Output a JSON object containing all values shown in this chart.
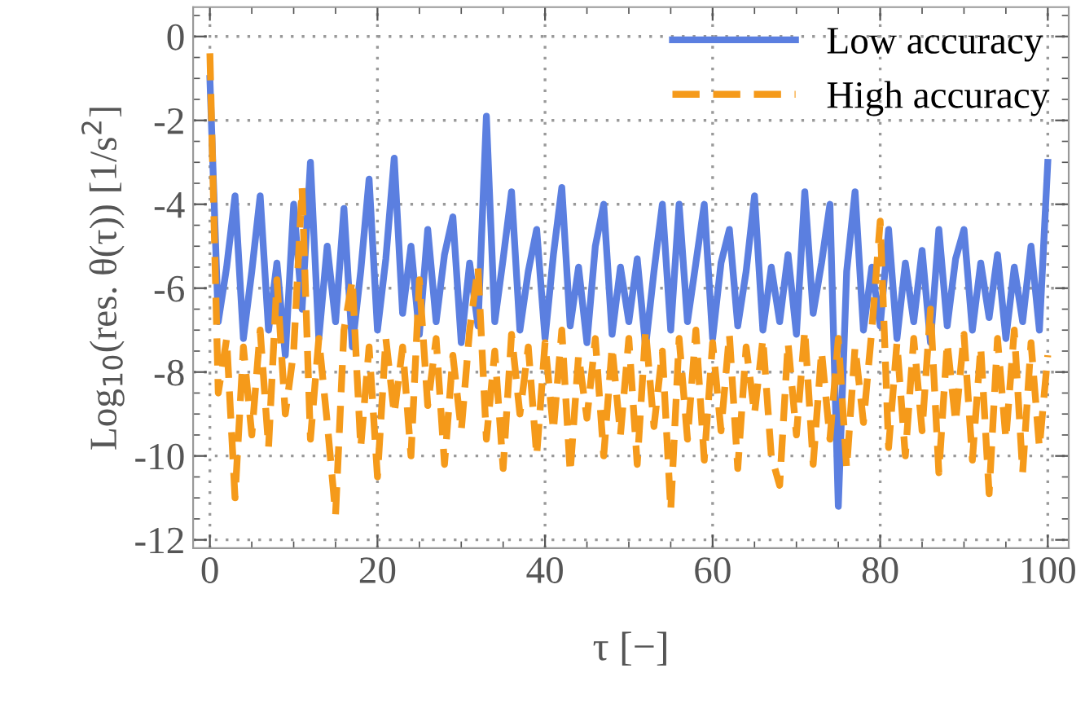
{
  "chart_data": {
    "type": "line",
    "xlabel": "τ [−]",
    "ylabel": "Log$_{10}$(res. θ(τ)) [1/s$^{2}$]",
    "x": [
      0,
      1,
      2,
      3,
      4,
      5,
      6,
      7,
      8,
      9,
      10,
      11,
      12,
      13,
      14,
      15,
      16,
      17,
      18,
      19,
      20,
      21,
      22,
      23,
      24,
      25,
      26,
      27,
      28,
      29,
      30,
      31,
      32,
      33,
      34,
      35,
      36,
      37,
      38,
      39,
      40,
      41,
      42,
      43,
      44,
      45,
      46,
      47,
      48,
      49,
      50,
      51,
      52,
      53,
      54,
      55,
      56,
      57,
      58,
      59,
      60,
      61,
      62,
      63,
      64,
      65,
      66,
      67,
      68,
      69,
      70,
      71,
      72,
      73,
      74,
      75,
      76,
      77,
      78,
      79,
      80,
      81,
      82,
      83,
      84,
      85,
      86,
      87,
      88,
      89,
      90,
      91,
      92,
      93,
      94,
      95,
      96,
      97,
      98,
      99,
      100
    ],
    "series": [
      {
        "name": "Low accuracy",
        "color": "#5b7fe0",
        "line_style": "solid",
        "values": [
          -1.0,
          -6.8,
          -5.5,
          -3.8,
          -7.2,
          -5.6,
          -3.8,
          -7.0,
          -5.4,
          -7.6,
          -4.0,
          -6.5,
          -3.0,
          -7.2,
          -5.0,
          -6.8,
          -4.1,
          -7.4,
          -5.6,
          -3.4,
          -7.0,
          -5.3,
          -2.9,
          -6.6,
          -5.0,
          -7.1,
          -4.6,
          -6.8,
          -5.2,
          -4.3,
          -7.3,
          -5.4,
          -6.9,
          -1.9,
          -6.8,
          -5.3,
          -3.7,
          -7.0,
          -5.6,
          -4.6,
          -7.2,
          -5.2,
          -3.6,
          -6.9,
          -5.5,
          -7.3,
          -5.0,
          -4.0,
          -7.1,
          -5.5,
          -6.8,
          -5.3,
          -7.4,
          -5.6,
          -4.0,
          -7.0,
          -4.0,
          -6.8,
          -5.4,
          -4.0,
          -7.2,
          -5.4,
          -4.6,
          -6.9,
          -5.6,
          -3.8,
          -7.0,
          -5.5,
          -6.8,
          -5.2,
          -7.1,
          -3.7,
          -6.6,
          -5.4,
          -4.0,
          -11.2,
          -5.6,
          -3.7,
          -7.0,
          -5.5,
          -6.9,
          -4.6,
          -7.2,
          -5.4,
          -6.8,
          -5.1,
          -7.3,
          -4.6,
          -6.9,
          -5.3,
          -4.6,
          -7.0,
          -5.4,
          -6.7,
          -5.2,
          -7.2,
          -5.5,
          -6.8,
          -5.0,
          -7.0,
          -3.0
        ]
      },
      {
        "name": "High accuracy",
        "color": "#f59a1a",
        "line_style": "dashed",
        "values": [
          -0.4,
          -8.5,
          -7.2,
          -11.0,
          -7.4,
          -9.5,
          -7.0,
          -9.8,
          -5.8,
          -9.0,
          -7.5,
          -3.6,
          -9.6,
          -7.2,
          -9.2,
          -11.4,
          -7.0,
          -5.8,
          -9.8,
          -7.4,
          -10.5,
          -7.2,
          -9.0,
          -7.4,
          -10.0,
          -5.8,
          -8.8,
          -7.2,
          -10.2,
          -7.6,
          -9.4,
          -7.0,
          -5.5,
          -9.6,
          -7.5,
          -10.3,
          -7.1,
          -9.0,
          -7.4,
          -10.0,
          -7.3,
          -9.4,
          -7.0,
          -10.4,
          -7.6,
          -9.1,
          -7.2,
          -10.0,
          -7.4,
          -9.5,
          -7.2,
          -10.2,
          -7.0,
          -9.3,
          -7.5,
          -11.3,
          -7.2,
          -9.6,
          -7.0,
          -10.1,
          -7.3,
          -9.4,
          -7.1,
          -10.3,
          -7.4,
          -9.0,
          -7.2,
          -10.0,
          -10.7,
          -7.3,
          -9.5,
          -7.0,
          -10.2,
          -7.5,
          -9.6,
          -7.2,
          -10.3,
          -7.4,
          -9.2,
          -7.0,
          -4.4,
          -9.8,
          -7.3,
          -10.0,
          -7.2,
          -9.4,
          -6.5,
          -10.4,
          -7.3,
          -9.2,
          -7.1,
          -10.1,
          -7.4,
          -10.9,
          -7.2,
          -9.6,
          -7.0,
          -10.4,
          -7.3,
          -9.8,
          -7.6
        ]
      }
    ],
    "xlim": [
      -2,
      102.5
    ],
    "ylim": [
      -12.2,
      0.7
    ],
    "xticks": [
      0,
      20,
      40,
      60,
      80,
      100
    ],
    "yticks": [
      -12,
      -10,
      -8,
      -6,
      -4,
      -2,
      0
    ],
    "grid": true,
    "legend": "top right",
    "marker": "none"
  }
}
